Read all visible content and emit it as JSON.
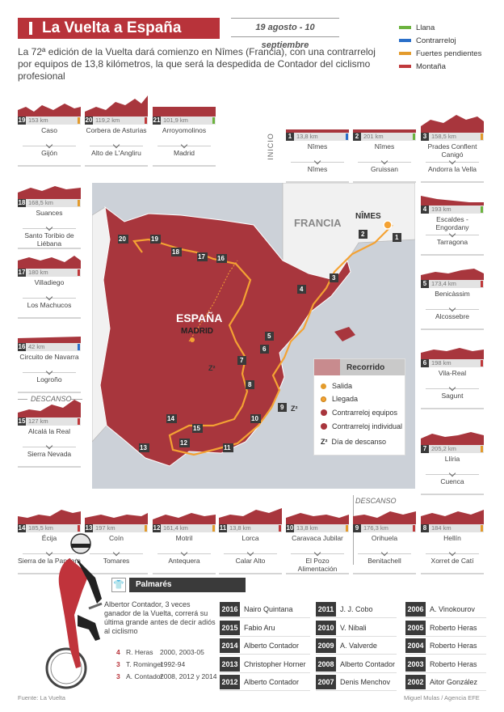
{
  "header": {
    "title": "La Vuelta a España 2017",
    "dates": "19 agosto - 10 septiembre",
    "intro": "La 72ª edición de la Vuelta dará comienzo en Nîmes (Francia), con una contrarreloj por equipos de 13,8 kilómetros, la que será la despedida de Contador del ciclismo profesional"
  },
  "legend": [
    {
      "label": "Llana",
      "color": "#6cb33f"
    },
    {
      "label": "Contrarreloj",
      "color": "#2a6fc9"
    },
    {
      "label": "Fuertes pendientes",
      "color": "#e39b2c"
    },
    {
      "label": "Montaña",
      "color": "#c0393b"
    }
  ],
  "labels": {
    "inicio": "INICIO",
    "descanso": "DESCANSO"
  },
  "stages": [
    {
      "num": "19",
      "km": "153 km",
      "type": "Fuertes pendientes",
      "color": "#e39b2c",
      "start": "Caso",
      "end": "Gijón"
    },
    {
      "num": "20",
      "km": "119,2 km",
      "type": "Montaña",
      "color": "#c0393b",
      "start": "Corbera de Asturias",
      "end": "Alto de L'Angliru"
    },
    {
      "num": "21",
      "km": "101,9 km",
      "type": "Llana",
      "color": "#6cb33f",
      "start": "Arroyomolinos",
      "end": "Madrid"
    },
    {
      "num": "1",
      "km": "13,8 km",
      "type": "Contrarreloj",
      "color": "#2a6fc9",
      "start": "Nîmes",
      "end": "Nîmes"
    },
    {
      "num": "2",
      "km": "201 km",
      "type": "Llana",
      "color": "#6cb33f",
      "start": "Nîmes",
      "end": "Gruissan"
    },
    {
      "num": "3",
      "km": "158,5 km",
      "type": "Fuertes pendientes",
      "color": "#e39b2c",
      "start": "Prades Conflent Canigó",
      "end": "Andorra la Vella"
    },
    {
      "num": "18",
      "km": "168,5 km",
      "type": "Fuertes pendientes",
      "color": "#e39b2c",
      "start": "Suances",
      "end": "Santo Toribio de Liébana"
    },
    {
      "num": "4",
      "km": "193 km",
      "type": "Llana",
      "color": "#6cb33f",
      "start": "Escaldes -Engordany",
      "end": "Tarragona"
    },
    {
      "num": "17",
      "km": "180 km",
      "type": "Montaña",
      "color": "#c0393b",
      "start": "Villadiego",
      "end": "Los Machucos"
    },
    {
      "num": "5",
      "km": "173,4 km",
      "type": "Montaña",
      "color": "#c0393b",
      "start": "Benicàssim",
      "end": "Alcossebre"
    },
    {
      "num": "16",
      "km": "42 km",
      "type": "Contrarreloj",
      "color": "#2a6fc9",
      "start": "Circuito de Navarra",
      "end": "Logroño"
    },
    {
      "num": "6",
      "km": "198 km",
      "type": "Montaña",
      "color": "#c0393b",
      "start": "Vila-Real",
      "end": "Sagunt"
    },
    {
      "num": "15",
      "km": "127 km",
      "type": "Montaña",
      "color": "#c0393b",
      "start": "Alcalá la Real",
      "end": "Sierra Nevada"
    },
    {
      "num": "7",
      "km": "205,2 km",
      "type": "Fuertes pendientes",
      "color": "#e39b2c",
      "start": "Llíria",
      "end": "Cuenca"
    },
    {
      "num": "14",
      "km": "185,5 km",
      "type": "Montaña",
      "color": "#c0393b",
      "start": "Écija",
      "end": "Sierra de la Pandera"
    },
    {
      "num": "13",
      "km": "197 km",
      "type": "Fuertes pendientes",
      "color": "#e39b2c",
      "start": "Coín",
      "end": "Tomares"
    },
    {
      "num": "12",
      "km": "161,4 km",
      "type": "Fuertes pendientes",
      "color": "#e39b2c",
      "start": "Motril",
      "end": "Antequera"
    },
    {
      "num": "11",
      "km": "13,8 km",
      "type": "Montaña",
      "color": "#c0393b",
      "start": "Lorca",
      "end": "Calar Alto"
    },
    {
      "num": "10",
      "km": "13,8 km",
      "type": "Fuertes pendientes",
      "color": "#e39b2c",
      "start": "Caravaca Jubilar",
      "end": "El Pozo Alimentación"
    },
    {
      "num": "9",
      "km": "176,3 km",
      "type": "Montaña",
      "color": "#c0393b",
      "start": "Orihuela",
      "end": "Benitachell"
    },
    {
      "num": "8",
      "km": "184 km",
      "type": "Fuertes pendientes",
      "color": "#e39b2c",
      "start": "Hellín",
      "end": "Xorret de Catí"
    }
  ],
  "map": {
    "country_spain": "ESPAÑA",
    "country_france": "FRANCIA",
    "capital": "MADRID",
    "city_nimes": "NÎMES",
    "stage_numbers": [
      "1",
      "2",
      "3",
      "4",
      "5",
      "6",
      "7",
      "8",
      "9",
      "10",
      "11",
      "12",
      "13",
      "14",
      "15",
      "16",
      "17",
      "18",
      "19",
      "20"
    ],
    "legend_title": "Recorrido",
    "legend_items": [
      "Salida",
      "Llegada",
      "Contrarreloj equipos",
      "Contrarreloj individual",
      "Día de descanso"
    ]
  },
  "palmares": {
    "title": "Palmarés",
    "text": "Albertor Contador, 3 veces ganador de la Vuelta, correrá su última grande antes de decir adiós al ciclismo",
    "ranking": [
      {
        "n": "4",
        "name": "R. Heras",
        "years": "2000, 2003-05"
      },
      {
        "n": "3",
        "name": "T. Rominger",
        "years": "1992-94"
      },
      {
        "n": "3",
        "name": "A. Contador",
        "years": "2008, 2012 y 2014"
      }
    ],
    "winners": [
      {
        "year": "2016",
        "name": "Nairo Quintana"
      },
      {
        "year": "2015",
        "name": "Fabio Aru"
      },
      {
        "year": "2014",
        "name": "Alberto Contador"
      },
      {
        "year": "2013",
        "name": "Christopher Horner"
      },
      {
        "year": "2012",
        "name": "Alberto Contador"
      },
      {
        "year": "2011",
        "name": "J. J. Cobo"
      },
      {
        "year": "2010",
        "name": "V. Nibali"
      },
      {
        "year": "2009",
        "name": "A. Valverde"
      },
      {
        "year": "2008",
        "name": "Alberto Contador"
      },
      {
        "year": "2007",
        "name": "Denis Menchov"
      },
      {
        "year": "2006",
        "name": "A. Vinokourov"
      },
      {
        "year": "2005",
        "name": "Roberto Heras"
      },
      {
        "year": "2004",
        "name": "Roberto Heras"
      },
      {
        "year": "2003",
        "name": "Roberto Heras"
      },
      {
        "year": "2002",
        "name": "Aitor González"
      }
    ]
  },
  "footer": {
    "source": "Fuente: La Vuelta",
    "credit": "Miguel Mulas / Agencia EFE"
  }
}
